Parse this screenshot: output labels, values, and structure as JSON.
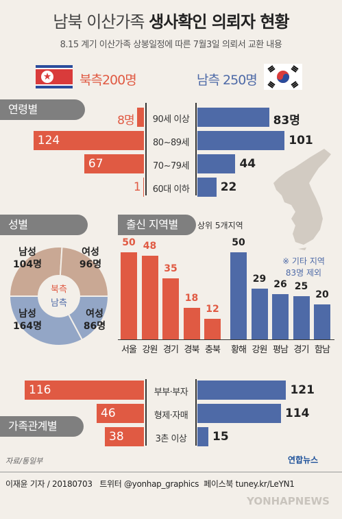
{
  "header": {
    "title_plain": "남북 이산가족",
    "title_bold": "생사확인 의뢰자 현황",
    "subtitle": "8.15 계기 이산가족 상봉일정에 따른 7월3일 의뢰서 교환 내용"
  },
  "legend": {
    "north_label": "북측",
    "north_total": "200명",
    "south_label": "남측",
    "south_total": "250명"
  },
  "colors": {
    "north": "#e05a43",
    "south": "#4e6aa7",
    "north_donut": "#c9a894",
    "south_donut": "#93a6c6",
    "tab": "#7f7f7f",
    "background": "#f3efe9"
  },
  "sections": {
    "age": "연령별",
    "gender": "성별",
    "region": "출신 지역별",
    "region_note": "상위 5개지역",
    "relation": "가족관계별"
  },
  "chart_data": [
    {
      "type": "bar",
      "orientation": "horizontal-diverging",
      "section": "연령별",
      "categories": [
        "90세 이상",
        "80~89세",
        "70~79세",
        "60대 이하"
      ],
      "series": [
        {
          "name": "북측",
          "values": [
            8,
            124,
            67,
            1
          ],
          "labels": [
            "8명",
            "124",
            "67",
            "1"
          ]
        },
        {
          "name": "남측",
          "values": [
            83,
            101,
            44,
            22
          ],
          "labels": [
            "83명",
            "101",
            "44",
            "22"
          ]
        }
      ]
    },
    {
      "type": "pie",
      "section": "성별",
      "series": [
        {
          "name": "북측",
          "slices": [
            {
              "label": "남성",
              "value": 104,
              "text": "104명"
            },
            {
              "label": "여성",
              "value": 96,
              "text": "96명"
            }
          ]
        },
        {
          "name": "남측",
          "slices": [
            {
              "label": "남성",
              "value": 164,
              "text": "164명"
            },
            {
              "label": "여성",
              "value": 86,
              "text": "86명"
            }
          ]
        }
      ]
    },
    {
      "type": "bar",
      "section": "출신 지역별",
      "series": [
        {
          "name": "북측",
          "categories": [
            "서울",
            "강원",
            "경기",
            "경북",
            "충북"
          ],
          "values": [
            50,
            48,
            35,
            18,
            12
          ]
        },
        {
          "name": "남측",
          "categories": [
            "황해",
            "강원",
            "평남",
            "경기",
            "함남"
          ],
          "values": [
            50,
            29,
            26,
            25,
            20
          ]
        }
      ],
      "note_line1": "※ 기타 지역",
      "note_line2": "83명 제외"
    },
    {
      "type": "bar",
      "orientation": "horizontal-diverging",
      "section": "가족관계별",
      "categories": [
        "부부·부자",
        "형제·자매",
        "3촌 이상"
      ],
      "series": [
        {
          "name": "북측",
          "values": [
            116,
            46,
            38
          ]
        },
        {
          "name": "남측",
          "values": [
            121,
            114,
            15
          ]
        }
      ]
    }
  ],
  "footer": {
    "source": "자료/통일부",
    "credit": "이재윤 기자 / 20180703   트위터 @yonhap_graphics  페이스북 tuney.kr/LeYN1",
    "logo": "연합뉴스",
    "watermark": "YONHAPNEWS"
  }
}
